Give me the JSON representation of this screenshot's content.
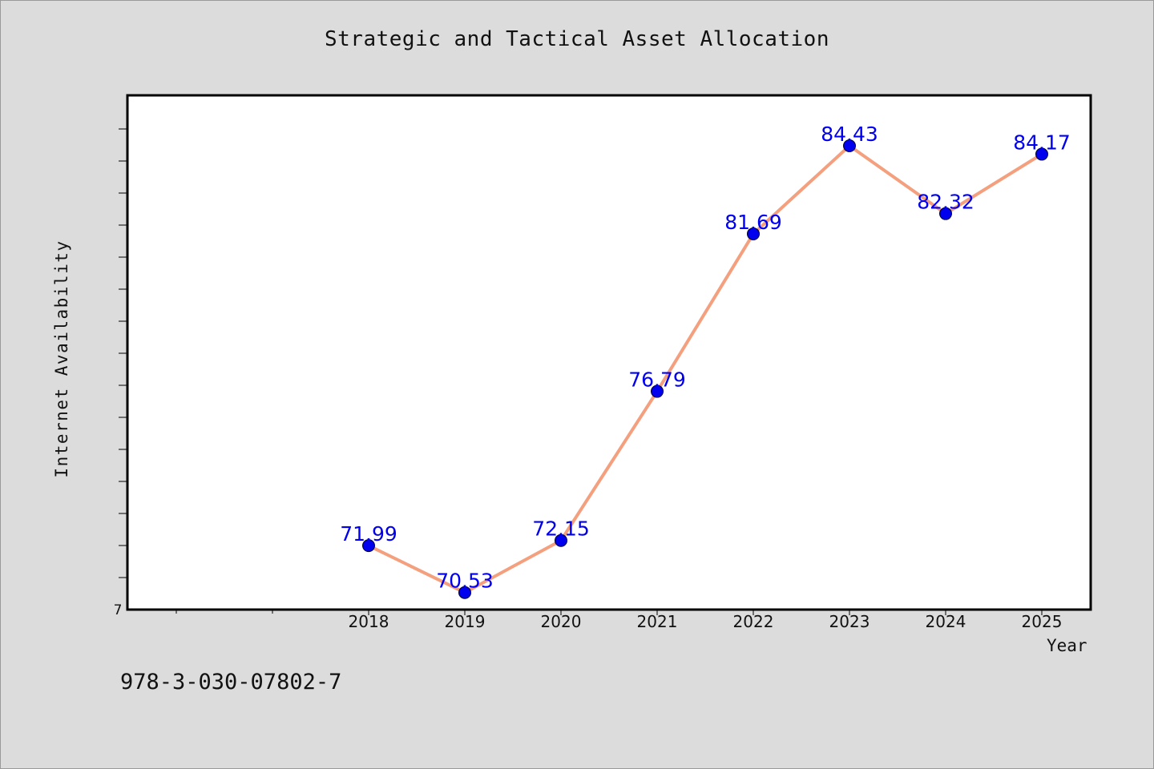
{
  "chart_data": {
    "type": "line",
    "title": "Strategic and Tactical Asset Allocation",
    "xlabel": "Year",
    "ylabel": "Internet Availability",
    "x": [
      "2018",
      "2019",
      "2020",
      "2021",
      "2022",
      "2023",
      "2024",
      "2025"
    ],
    "series": [
      {
        "values": [
          71.99,
          70.53,
          72.15,
          76.79,
          81.69,
          84.43,
          82.32,
          84.17
        ],
        "labels": [
          "71.99",
          "70.53",
          "72.15",
          "76.79",
          "81.69",
          "84.43",
          "82.32",
          "84.17"
        ]
      }
    ],
    "ylim": [
      70,
      86
    ],
    "y_tick_label": "7",
    "grid": false,
    "line_color": "#f4a07e",
    "marker_color": "#0000ee",
    "label_color": "#0000ee"
  },
  "footer": {
    "text": "978-3-030-07802-7"
  },
  "colors": {
    "background": "#dcdcdc",
    "plot_area": "#ffffff"
  }
}
